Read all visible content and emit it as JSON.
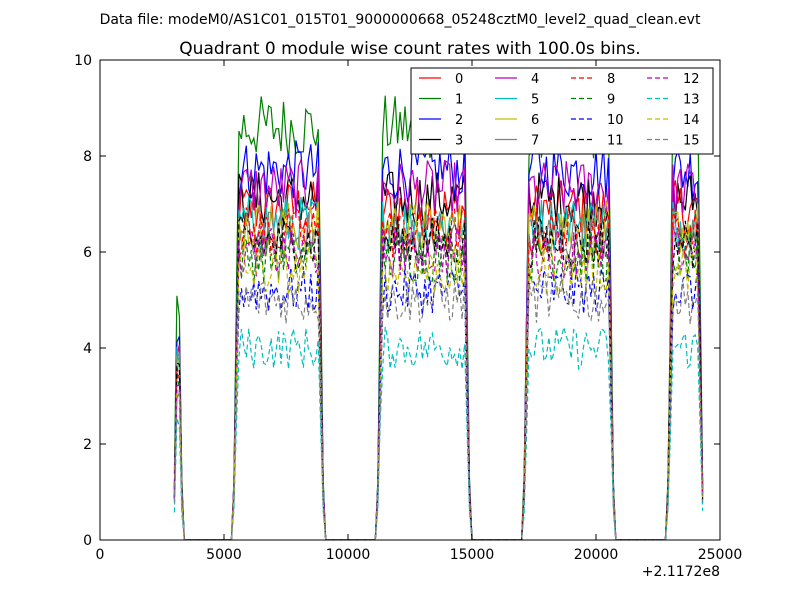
{
  "figure": {
    "suptitle": "Data file: modeM0/AS1C01_015T01_9000000668_05248cztM0_level2_quad_clean.evt"
  },
  "chart_data": {
    "type": "line",
    "title": "Quadrant 0 module wise count rates with 100.0s bins.",
    "xlabel": "",
    "ylabel": "",
    "x_offset_label": "+2.1172e8",
    "xlim": [
      0,
      25000
    ],
    "ylim": [
      0,
      10
    ],
    "x_ticks": [
      0,
      5000,
      10000,
      15000,
      20000,
      25000
    ],
    "x_tick_labels": [
      "0",
      "5000",
      "10000",
      "15000",
      "20000",
      "25000"
    ],
    "y_ticks": [
      0,
      2,
      4,
      6,
      8,
      10
    ],
    "y_tick_labels": [
      "0",
      "2",
      "4",
      "6",
      "8",
      "10"
    ],
    "legend_location": "top-right",
    "legend_columns": 4,
    "bin_width_s": 100,
    "active_segments": [
      [
        3000,
        3300
      ],
      [
        5400,
        9000
      ],
      [
        11200,
        14900
      ],
      [
        17100,
        20700
      ],
      [
        22900,
        24300
      ]
    ],
    "series": [
      {
        "name": "0",
        "color": "#ff0000",
        "dash": "solid",
        "level": 6.9
      },
      {
        "name": "1",
        "color": "#008000",
        "dash": "solid",
        "level": 8.6
      },
      {
        "name": "2",
        "color": "#0000ff",
        "dash": "solid",
        "level": 7.7
      },
      {
        "name": "3",
        "color": "#000000",
        "dash": "solid",
        "level": 7.1
      },
      {
        "name": "4",
        "color": "#bf00bf",
        "dash": "solid",
        "level": 7.3
      },
      {
        "name": "5",
        "color": "#00bfbf",
        "dash": "solid",
        "level": 6.6
      },
      {
        "name": "6",
        "color": "#bfbf00",
        "dash": "solid",
        "level": 6.5
      },
      {
        "name": "7",
        "color": "#808080",
        "dash": "solid",
        "level": 6.3
      },
      {
        "name": "8",
        "color": "#ff0000",
        "dash": "dashed",
        "level": 6.4
      },
      {
        "name": "9",
        "color": "#008000",
        "dash": "dashed",
        "level": 5.9
      },
      {
        "name": "10",
        "color": "#0000ff",
        "dash": "dashed",
        "level": 5.2
      },
      {
        "name": "11",
        "color": "#000000",
        "dash": "dashed",
        "level": 6.2
      },
      {
        "name": "12",
        "color": "#bf00bf",
        "dash": "dashed",
        "level": 6.0
      },
      {
        "name": "13",
        "color": "#00bfbf",
        "dash": "dashed",
        "level": 4.0
      },
      {
        "name": "14",
        "color": "#bfbf00",
        "dash": "dashed",
        "level": 5.6
      },
      {
        "name": "15",
        "color": "#808080",
        "dash": "dashed",
        "level": 5.0
      }
    ]
  }
}
